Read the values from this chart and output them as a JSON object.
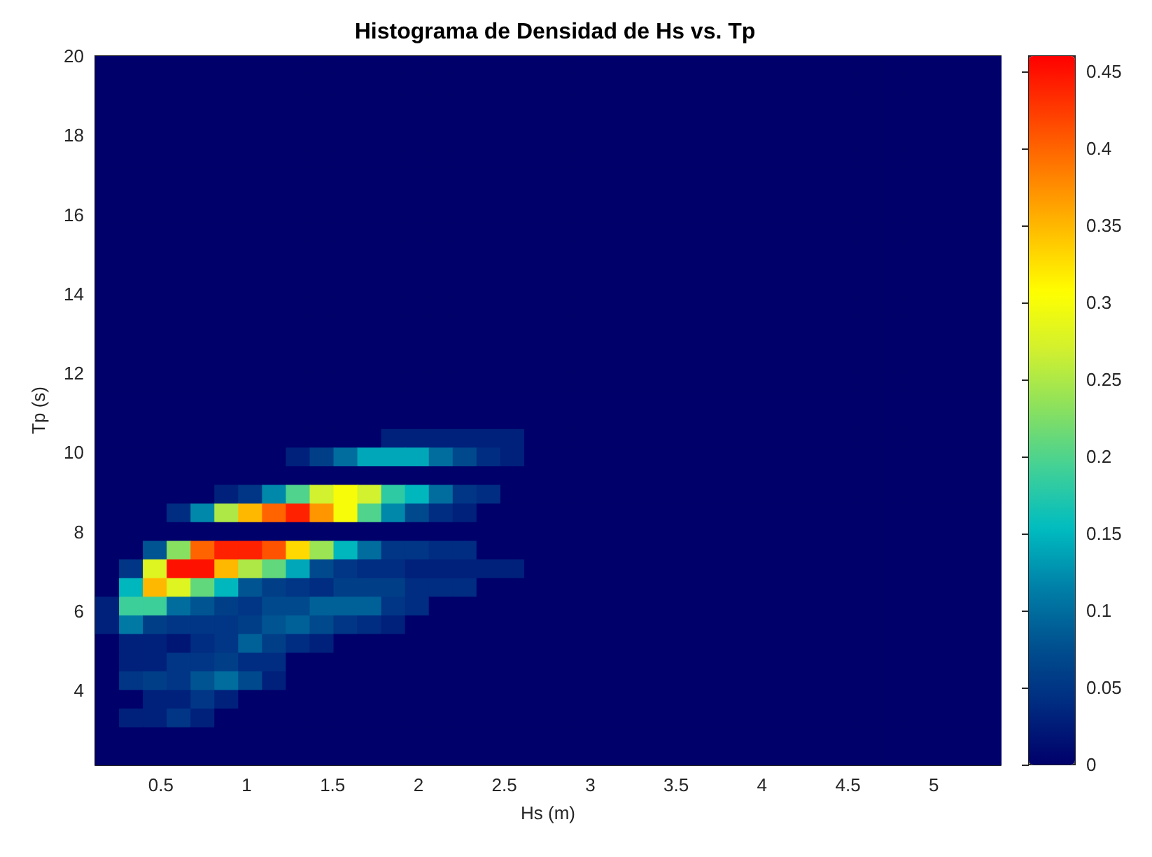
{
  "chart_data": {
    "type": "heatmap",
    "title": "Histograma de Densidad de Hs vs. Tp",
    "xlabel": "Hs (m)",
    "ylabel": "Tp (s)",
    "xlim": [
      0.118,
      5.39
    ],
    "ylim": [
      2.13,
      20
    ],
    "xticks": [
      0.5,
      1,
      1.5,
      2,
      2.5,
      3,
      3.5,
      4,
      4.5,
      5
    ],
    "yticks": [
      4,
      6,
      8,
      10,
      12,
      14,
      16,
      18,
      20
    ],
    "clim": [
      0,
      0.46
    ],
    "cticks": [
      0,
      0.05,
      0.1,
      0.15,
      0.2,
      0.25,
      0.3,
      0.35,
      0.4,
      0.45
    ],
    "cells": [
      [
        0,
        0,
        0,
        0,
        0,
        0,
        0,
        0,
        0,
        0,
        0,
        0,
        0,
        0,
        0,
        0,
        0,
        0,
        0,
        0,
        0,
        0,
        0,
        0,
        0,
        0,
        0,
        0,
        0,
        0,
        0,
        0,
        0,
        0,
        0,
        0,
        0,
        0
      ],
      [
        0,
        0,
        0,
        0,
        0,
        0,
        0,
        0,
        0,
        0,
        0,
        0,
        0,
        0,
        0,
        0,
        0,
        0,
        0,
        0,
        0,
        0,
        0,
        0,
        0,
        0,
        0,
        0,
        0,
        0,
        0,
        0,
        0,
        0,
        0,
        0,
        0,
        0
      ],
      [
        0,
        0,
        0,
        0,
        0,
        0,
        0,
        0,
        0,
        0,
        0,
        0,
        0,
        0,
        0,
        0,
        0,
        0,
        0,
        0,
        0,
        0,
        0,
        0,
        0,
        0,
        0,
        0,
        0,
        0,
        0,
        0,
        0,
        0,
        0,
        0,
        0,
        0
      ],
      [
        0,
        0,
        0,
        0,
        0,
        0,
        0,
        0,
        0,
        0,
        0,
        0,
        0,
        0,
        0,
        0,
        0,
        0,
        0,
        0,
        0,
        0,
        0,
        0,
        0,
        0,
        0,
        0,
        0,
        0,
        0,
        0,
        0,
        0,
        0,
        0,
        0,
        0
      ],
      [
        0,
        0,
        0,
        0,
        0,
        0,
        0,
        0,
        0,
        0,
        0,
        0,
        0,
        0,
        0,
        0,
        0,
        0,
        0,
        0,
        0,
        0,
        0,
        0,
        0,
        0,
        0,
        0,
        0,
        0,
        0,
        0,
        0,
        0,
        0,
        0,
        0,
        0
      ],
      [
        0,
        0,
        0,
        0,
        0,
        0,
        0,
        0,
        0,
        0,
        0,
        0,
        0,
        0,
        0,
        0,
        0,
        0,
        0,
        0,
        0,
        0,
        0,
        0,
        0,
        0,
        0,
        0,
        0,
        0,
        0,
        0,
        0,
        0,
        0,
        0,
        0,
        0
      ],
      [
        0,
        0,
        0,
        0,
        0,
        0,
        0,
        0,
        0,
        0,
        0,
        0,
        0,
        0,
        0,
        0,
        0,
        0,
        0,
        0,
        0,
        0,
        0,
        0,
        0,
        0,
        0,
        0,
        0,
        0,
        0,
        0,
        0,
        0,
        0,
        0,
        0,
        0
      ],
      [
        0,
        0,
        0,
        0,
        0,
        0,
        0,
        0,
        0,
        0,
        0,
        0,
        0,
        0,
        0,
        0,
        0,
        0,
        0,
        0,
        0,
        0,
        0,
        0,
        0,
        0,
        0,
        0,
        0,
        0,
        0,
        0,
        0,
        0,
        0,
        0,
        0,
        0
      ],
      [
        0,
        0,
        0,
        0,
        0,
        0,
        0,
        0,
        0,
        0,
        0,
        0,
        0,
        0,
        0,
        0,
        0,
        0,
        0,
        0,
        0,
        0,
        0,
        0,
        0,
        0,
        0,
        0,
        0,
        0,
        0,
        0,
        0,
        0,
        0,
        0,
        0,
        0
      ],
      [
        0,
        0,
        0,
        0,
        0,
        0,
        0,
        0,
        0,
        0,
        0,
        0,
        0,
        0,
        0,
        0,
        0,
        0,
        0,
        0,
        0,
        0,
        0,
        0,
        0,
        0,
        0,
        0,
        0,
        0,
        0,
        0,
        0,
        0,
        0,
        0,
        0,
        0
      ],
      [
        0,
        0,
        0,
        0,
        0,
        0,
        0,
        0,
        0,
        0,
        0,
        0,
        0,
        0,
        0,
        0,
        0,
        0,
        0,
        0,
        0,
        0,
        0,
        0,
        0,
        0,
        0,
        0,
        0,
        0,
        0,
        0,
        0,
        0,
        0,
        0,
        0,
        0
      ],
      [
        0,
        0,
        0,
        0,
        0,
        0,
        0,
        0,
        0,
        0,
        0,
        0,
        0,
        0,
        0,
        0,
        0,
        0,
        0,
        0,
        0,
        0,
        0,
        0,
        0,
        0,
        0,
        0,
        0,
        0,
        0,
        0,
        0,
        0,
        0,
        0,
        0,
        0
      ],
      [
        0,
        0,
        0,
        0,
        0,
        0,
        0,
        0,
        0,
        0,
        0,
        0,
        0,
        0,
        0,
        0,
        0,
        0,
        0,
        0,
        0,
        0,
        0,
        0,
        0,
        0,
        0,
        0,
        0,
        0,
        0,
        0,
        0,
        0,
        0,
        0,
        0,
        0
      ],
      [
        0,
        0,
        0,
        0,
        0,
        0,
        0,
        0,
        0,
        0,
        0,
        0,
        0,
        0,
        0,
        0,
        0,
        0,
        0,
        0,
        0,
        0,
        0,
        0,
        0,
        0,
        0,
        0,
        0,
        0,
        0,
        0,
        0,
        0,
        0,
        0,
        0,
        0
      ],
      [
        0,
        0,
        0,
        0,
        0,
        0,
        0,
        0,
        0,
        0,
        0,
        0,
        0,
        0,
        0,
        0,
        0,
        0,
        0,
        0,
        0,
        0,
        0,
        0,
        0,
        0,
        0,
        0,
        0,
        0,
        0,
        0,
        0,
        0,
        0,
        0,
        0,
        0
      ],
      [
        0,
        0,
        0,
        0,
        0,
        0,
        0,
        0,
        0,
        0,
        0,
        0,
        0,
        0,
        0,
        0,
        0,
        0,
        0,
        0,
        0,
        0,
        0,
        0,
        0,
        0,
        0,
        0,
        0,
        0,
        0,
        0,
        0,
        0,
        0,
        0,
        0,
        0
      ],
      [
        0,
        0,
        0,
        0,
        0,
        0,
        0,
        0,
        0,
        0,
        0,
        0,
        0,
        0,
        0,
        0,
        0,
        0,
        0,
        0,
        0,
        0,
        0,
        0,
        0,
        0,
        0,
        0,
        0,
        0,
        0,
        0,
        0,
        0,
        0,
        0,
        0,
        0
      ],
      [
        0,
        0,
        0,
        0,
        0,
        0,
        0,
        0,
        0,
        0,
        0,
        0,
        0,
        0,
        0,
        0,
        0,
        0,
        0,
        0,
        0,
        0,
        0,
        0,
        0,
        0,
        0,
        0,
        0,
        0,
        0,
        0,
        0,
        0,
        0,
        0,
        0,
        0
      ],
      [
        0,
        0,
        0,
        0,
        0,
        0,
        0,
        0,
        0,
        0,
        0,
        0,
        0,
        0,
        0,
        0,
        0,
        0,
        0,
        0,
        0,
        0,
        0,
        0,
        0,
        0,
        0,
        0,
        0,
        0,
        0,
        0,
        0,
        0,
        0,
        0,
        0,
        0
      ],
      [
        0,
        0,
        0,
        0,
        0,
        0,
        0,
        0,
        0,
        0,
        0,
        0,
        0,
        0,
        0,
        0,
        0,
        0,
        0,
        0,
        0,
        0,
        0,
        0,
        0,
        0,
        0,
        0,
        0,
        0,
        0,
        0,
        0,
        0,
        0,
        0,
        0,
        0
      ],
      [
        0,
        0,
        0,
        0,
        0,
        0,
        0,
        0,
        0,
        0,
        0,
        0,
        0.03,
        0.03,
        0.03,
        0.03,
        0.03,
        0.03,
        0,
        0,
        0,
        0,
        0,
        0,
        0,
        0,
        0,
        0,
        0,
        0,
        0,
        0,
        0,
        0,
        0,
        0,
        0,
        0
      ],
      [
        0,
        0,
        0,
        0,
        0,
        0,
        0,
        0,
        0.03,
        0.06,
        0.1,
        0.14,
        0.14,
        0.14,
        0.1,
        0.07,
        0.04,
        0.03,
        0,
        0,
        0,
        0,
        0,
        0,
        0,
        0,
        0,
        0,
        0,
        0,
        0,
        0,
        0,
        0,
        0,
        0,
        0,
        0
      ],
      [
        0,
        0,
        0,
        0,
        0,
        0,
        0,
        0,
        0,
        0,
        0,
        0,
        0,
        0,
        0,
        0,
        0,
        0,
        0,
        0,
        0,
        0,
        0,
        0,
        0,
        0,
        0,
        0,
        0,
        0,
        0,
        0,
        0,
        0,
        0,
        0,
        0,
        0
      ],
      [
        0,
        0,
        0,
        0,
        0,
        0.03,
        0.05,
        0.12,
        0.2,
        0.27,
        0.3,
        0.27,
        0.18,
        0.15,
        0.1,
        0.05,
        0.04,
        0,
        0,
        0,
        0,
        0,
        0,
        0,
        0,
        0,
        0,
        0,
        0,
        0,
        0,
        0,
        0,
        0,
        0,
        0,
        0,
        0
      ],
      [
        0,
        0,
        0,
        0.04,
        0.12,
        0.25,
        0.35,
        0.4,
        0.44,
        0.37,
        0.3,
        0.2,
        0.12,
        0.07,
        0.04,
        0.03,
        0,
        0,
        0,
        0,
        0,
        0,
        0,
        0,
        0,
        0,
        0,
        0,
        0,
        0,
        0,
        0,
        0,
        0,
        0,
        0,
        0,
        0
      ],
      [
        0,
        0,
        0,
        0,
        0,
        0,
        0,
        0,
        0,
        0,
        0,
        0,
        0,
        0,
        0,
        0,
        0,
        0,
        0,
        0,
        0,
        0,
        0,
        0,
        0,
        0,
        0,
        0,
        0,
        0,
        0,
        0,
        0,
        0,
        0,
        0,
        0,
        0
      ],
      [
        0,
        0,
        0.08,
        0.23,
        0.4,
        0.44,
        0.44,
        0.41,
        0.33,
        0.24,
        0.15,
        0.1,
        0.05,
        0.05,
        0.04,
        0.04,
        0,
        0,
        0,
        0,
        0,
        0,
        0,
        0,
        0,
        0,
        0,
        0,
        0,
        0,
        0,
        0,
        0,
        0,
        0,
        0,
        0,
        0
      ],
      [
        0,
        0.05,
        0.28,
        0.45,
        0.45,
        0.35,
        0.25,
        0.21,
        0.14,
        0.07,
        0.05,
        0.04,
        0.04,
        0.03,
        0.03,
        0.03,
        0.03,
        0.03,
        0,
        0,
        0,
        0,
        0,
        0,
        0,
        0,
        0,
        0,
        0,
        0,
        0,
        0,
        0,
        0,
        0,
        0,
        0,
        0
      ],
      [
        0,
        0.15,
        0.35,
        0.28,
        0.21,
        0.15,
        0.08,
        0.06,
        0.05,
        0.04,
        0.06,
        0.06,
        0.06,
        0.04,
        0.04,
        0.04,
        0,
        0,
        0,
        0,
        0,
        0,
        0,
        0,
        0,
        0,
        0,
        0,
        0,
        0,
        0,
        0,
        0,
        0,
        0,
        0,
        0,
        0
      ],
      [
        0.03,
        0.19,
        0.19,
        0.1,
        0.08,
        0.06,
        0.05,
        0.07,
        0.07,
        0.09,
        0.09,
        0.09,
        0.05,
        0.04,
        0,
        0,
        0,
        0,
        0,
        0,
        0,
        0,
        0,
        0,
        0,
        0,
        0,
        0,
        0,
        0,
        0,
        0,
        0,
        0,
        0,
        0,
        0,
        0
      ],
      [
        0.03,
        0.11,
        0.06,
        0.05,
        0.05,
        0.05,
        0.06,
        0.08,
        0.09,
        0.07,
        0.05,
        0.04,
        0.03,
        0,
        0,
        0,
        0,
        0,
        0,
        0,
        0,
        0,
        0,
        0,
        0,
        0,
        0,
        0,
        0,
        0,
        0,
        0,
        0,
        0,
        0,
        0,
        0,
        0
      ],
      [
        0,
        0.03,
        0.03,
        0.02,
        0.04,
        0.05,
        0.09,
        0.06,
        0.04,
        0.03,
        0,
        0,
        0,
        0,
        0,
        0,
        0,
        0,
        0,
        0,
        0,
        0,
        0,
        0,
        0,
        0,
        0,
        0,
        0,
        0,
        0,
        0,
        0,
        0,
        0,
        0,
        0,
        0
      ],
      [
        0,
        0.03,
        0.03,
        0.05,
        0.05,
        0.06,
        0.04,
        0.04,
        0,
        0,
        0,
        0,
        0,
        0,
        0,
        0,
        0,
        0,
        0,
        0,
        0,
        0,
        0,
        0,
        0,
        0,
        0,
        0,
        0,
        0,
        0,
        0,
        0,
        0,
        0,
        0,
        0,
        0
      ],
      [
        0,
        0.05,
        0.06,
        0.05,
        0.08,
        0.1,
        0.07,
        0.03,
        0,
        0,
        0,
        0,
        0,
        0,
        0,
        0,
        0,
        0,
        0,
        0,
        0,
        0,
        0,
        0,
        0,
        0,
        0,
        0,
        0,
        0,
        0,
        0,
        0,
        0,
        0,
        0,
        0,
        0
      ],
      [
        0,
        0,
        0.03,
        0.03,
        0.05,
        0.03,
        0,
        0,
        0,
        0,
        0,
        0,
        0,
        0,
        0,
        0,
        0,
        0,
        0,
        0,
        0,
        0,
        0,
        0,
        0,
        0,
        0,
        0,
        0,
        0,
        0,
        0,
        0,
        0,
        0,
        0,
        0,
        0
      ],
      [
        0,
        0.03,
        0.03,
        0.05,
        0.03,
        0,
        0,
        0,
        0,
        0,
        0,
        0,
        0,
        0,
        0,
        0,
        0,
        0,
        0,
        0,
        0,
        0,
        0,
        0,
        0,
        0,
        0,
        0,
        0,
        0,
        0,
        0,
        0,
        0,
        0,
        0,
        0,
        0
      ],
      [
        0,
        0,
        0,
        0,
        0,
        0,
        0,
        0,
        0,
        0,
        0,
        0,
        0,
        0,
        0,
        0,
        0,
        0,
        0,
        0,
        0,
        0,
        0,
        0,
        0,
        0,
        0,
        0,
        0,
        0,
        0,
        0,
        0,
        0,
        0,
        0,
        0,
        0
      ],
      [
        0,
        0,
        0,
        0,
        0,
        0,
        0,
        0,
        0,
        0,
        0,
        0,
        0,
        0,
        0,
        0,
        0,
        0,
        0,
        0,
        0,
        0,
        0,
        0,
        0,
        0,
        0,
        0,
        0,
        0,
        0,
        0,
        0,
        0,
        0,
        0,
        0,
        0
      ]
    ]
  }
}
